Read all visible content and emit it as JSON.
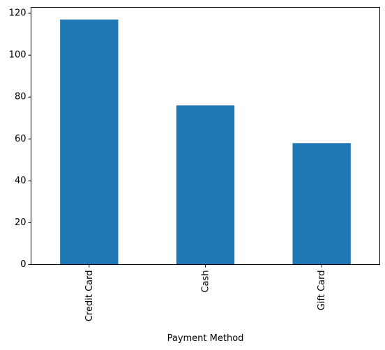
{
  "chart_data": {
    "type": "bar",
    "title": "",
    "xlabel": "Payment Method",
    "ylabel": "",
    "categories": [
      "Credit Card",
      "Cash",
      "Gift Card"
    ],
    "values": [
      117,
      76,
      58
    ],
    "ylim": [
      0,
      122.85
    ],
    "yticks": [
      0,
      20,
      40,
      60,
      80,
      100,
      120
    ],
    "x_tick_rotation": "vertical",
    "grid": false,
    "legend": "none",
    "bar_color": "#1f77b4"
  }
}
